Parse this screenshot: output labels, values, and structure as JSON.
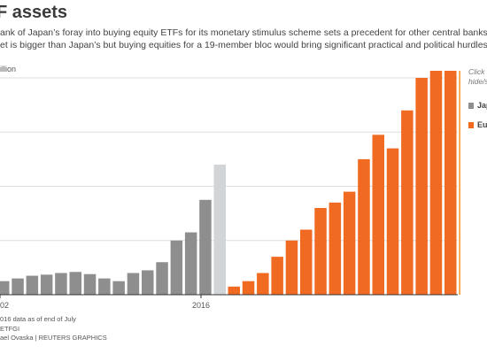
{
  "title": "F assets",
  "description": {
    "line1": "ank of Japan’s foray into buying equity ETFs for its monetary stimulus scheme sets a precedent for other central banks. Europe’s E",
    "line2": "et is bigger than Japan’s but buying equities for a 19-member bloc would bring significant practical and political hurdles."
  },
  "unit_label": "illion",
  "interaction_hint": {
    "line1": "Click",
    "line2": "hide/s"
  },
  "footnotes": {
    "line1": "016 data as of end of July",
    "line2": "ETFGI",
    "line3": "ael Ovaska | REUTERS GRAPHICS"
  },
  "colors": {
    "japan": "#8e8e8e",
    "japan_current": "#d2d5d8",
    "europe": "#f06a22",
    "europe_current": "#f7a03c",
    "grid": "#dddddd",
    "axis": "#333333"
  },
  "chart_data": {
    "type": "bar",
    "grid": true,
    "legend_position": "right",
    "ylim": [
      0,
      550
    ],
    "x_tick_labels": [
      "02",
      "2016"
    ],
    "series": [
      {
        "name": "Japa",
        "values": [
          25,
          30,
          35,
          37,
          40,
          42,
          38,
          30,
          25,
          40,
          45,
          60,
          100,
          115,
          175,
          240
        ],
        "highlight_last": true
      },
      {
        "name": "Euro",
        "values": [
          15,
          25,
          40,
          70,
          100,
          120,
          160,
          170,
          190,
          250,
          295,
          270,
          340,
          400,
          470,
          520,
          540
        ],
        "highlight_last": true
      }
    ]
  }
}
